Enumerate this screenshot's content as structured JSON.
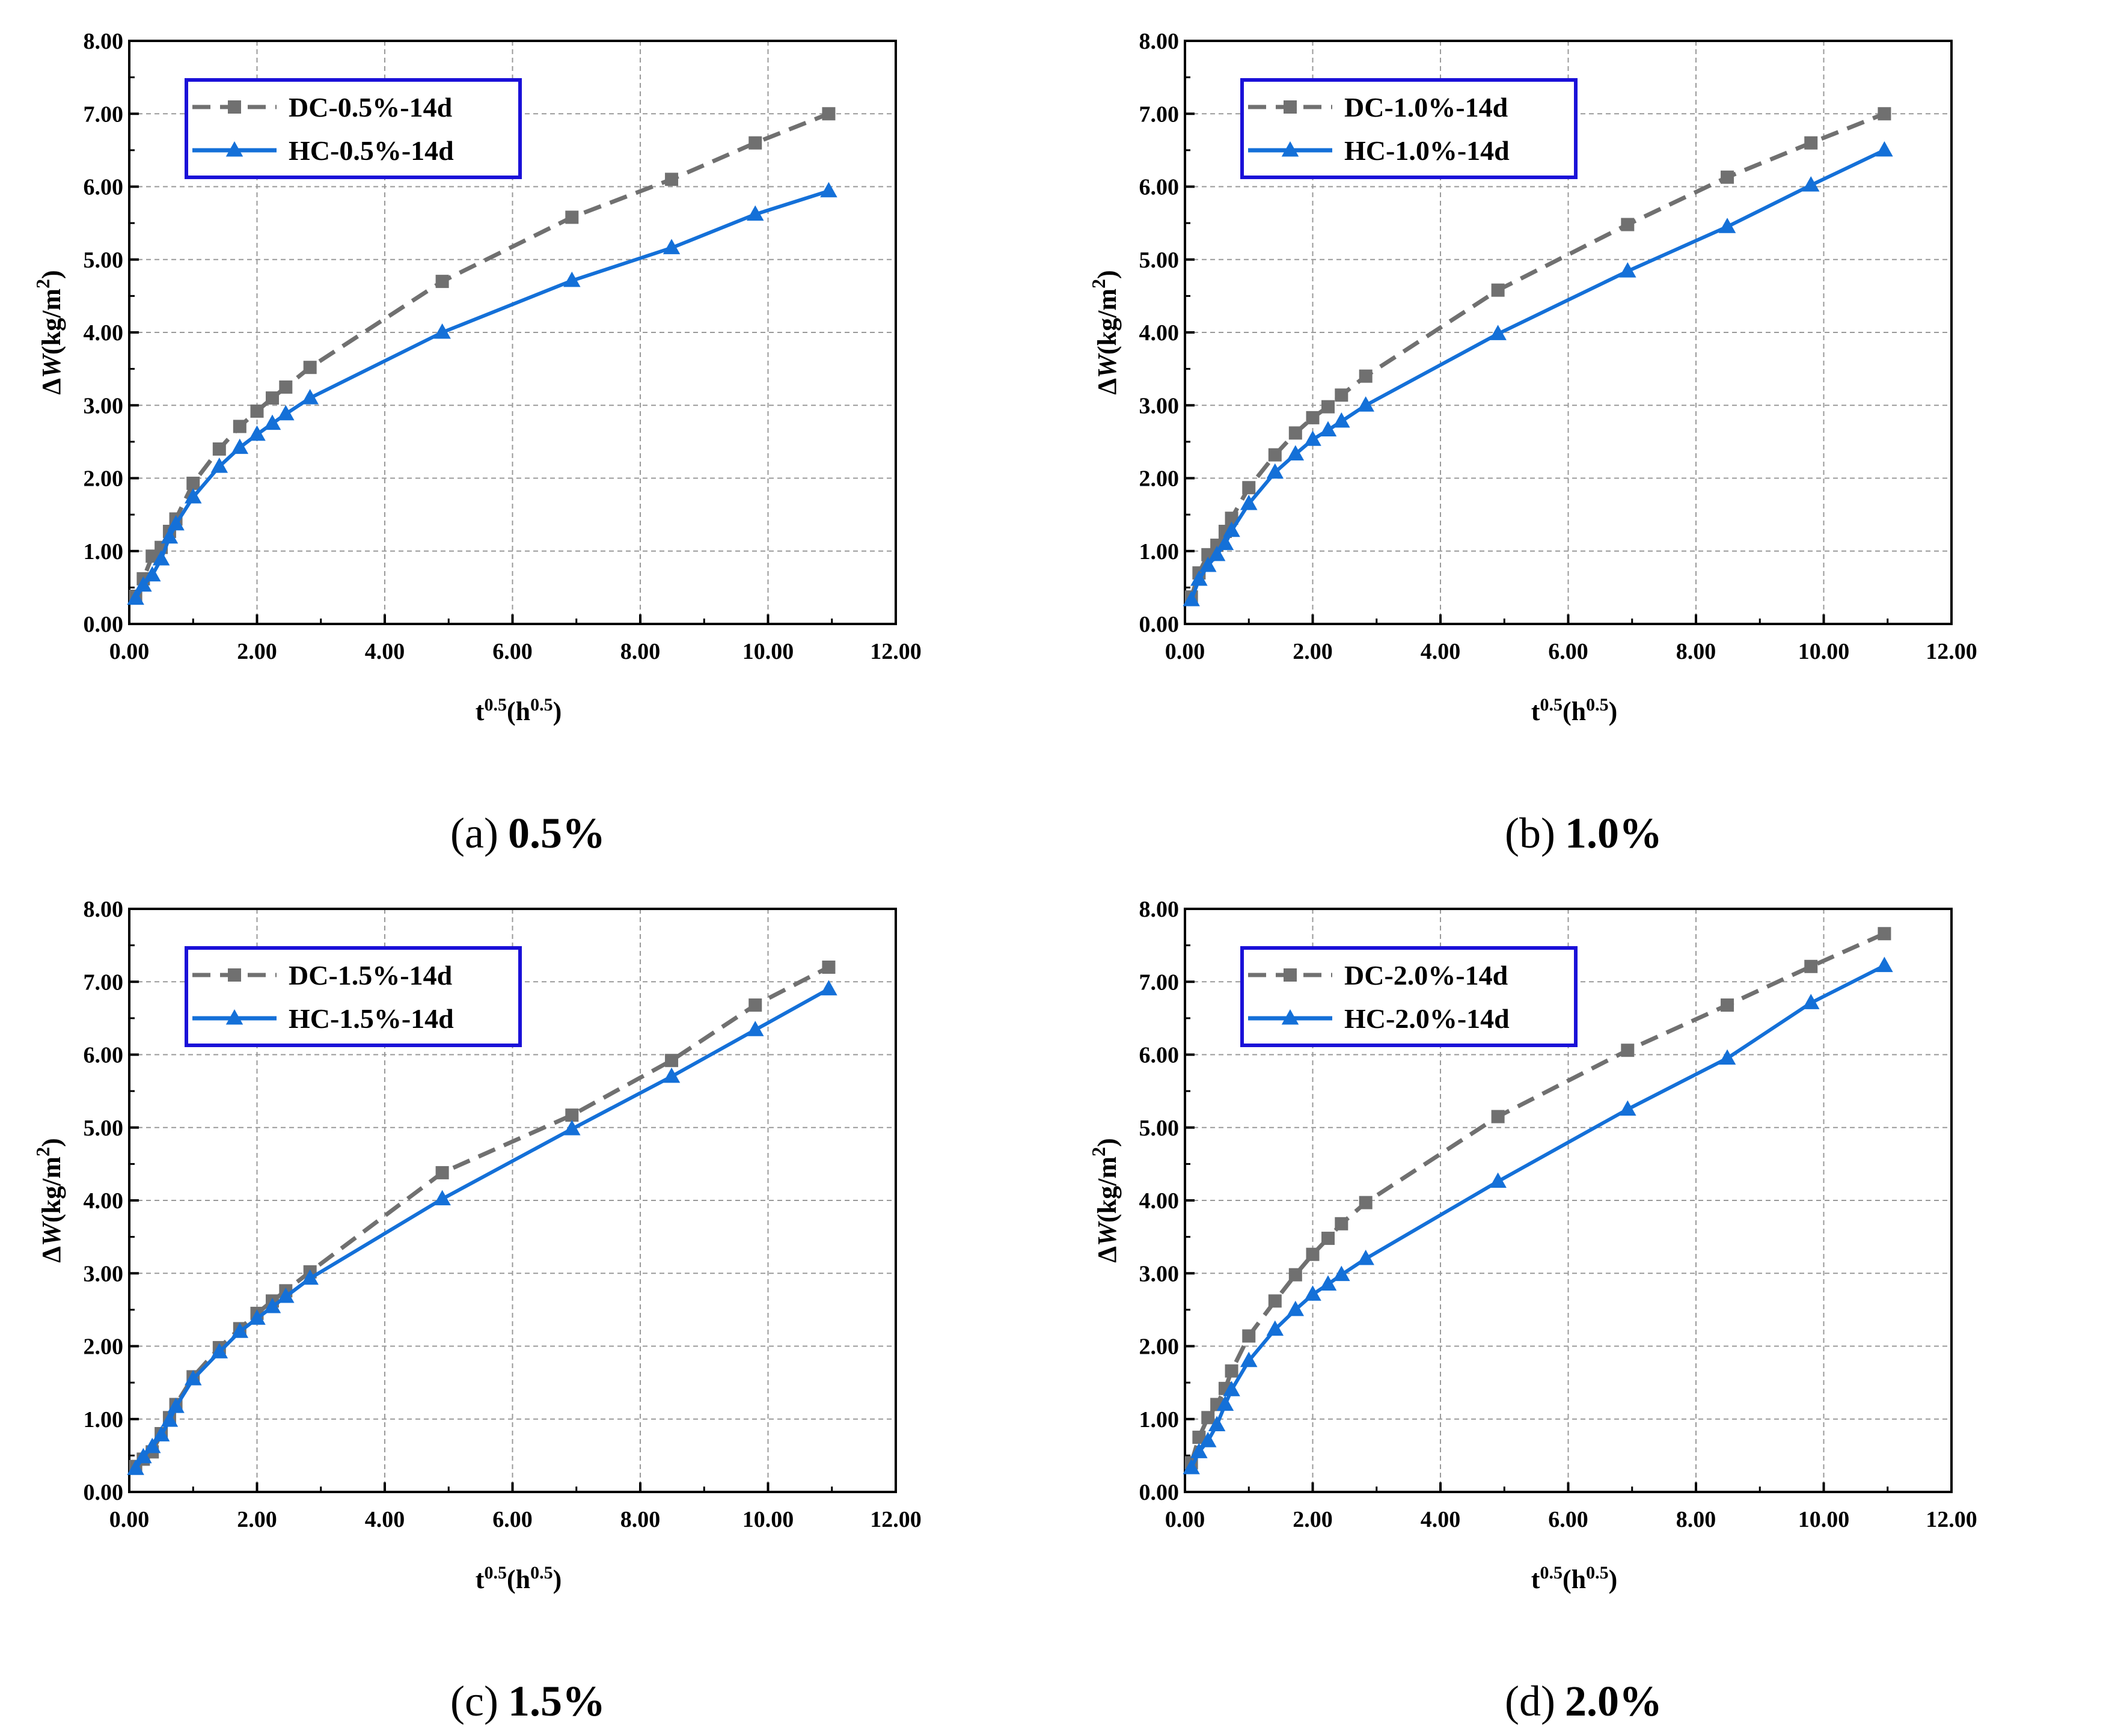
{
  "colors": {
    "dc": "#707070",
    "hc": "#1470d8",
    "legend_border": "#1a10d8",
    "grid": "#9a9a9a"
  },
  "chart_data": [
    {
      "type": "line",
      "panel_id": "a",
      "caption_label": "(a)",
      "caption_value": "0.5%",
      "xlabel": "t^0.5(h^0.5)",
      "ylabel": "ΔW(kg/m2)",
      "xlim": [
        0,
        12
      ],
      "ylim": [
        0,
        8
      ],
      "x_ticks": [
        "0.00",
        "2.00",
        "4.00",
        "6.00",
        "8.00",
        "10.00",
        "12.00"
      ],
      "y_ticks": [
        "0.00",
        "1.00",
        "2.00",
        "3.00",
        "4.00",
        "5.00",
        "6.00",
        "7.00",
        "8.00"
      ],
      "grid": true,
      "legend": "top-left",
      "series": [
        {
          "name": "DC-0.5%-14d",
          "style": "dashed",
          "marker": "square",
          "x": [
            0.1,
            0.22,
            0.36,
            0.5,
            0.63,
            0.73,
            1.0,
            1.41,
            1.73,
            2.0,
            2.24,
            2.45,
            2.83,
            4.9,
            6.93,
            8.49,
            9.8,
            10.95
          ],
          "y": [
            0.38,
            0.62,
            0.93,
            1.05,
            1.27,
            1.44,
            1.93,
            2.4,
            2.71,
            2.92,
            3.1,
            3.25,
            3.52,
            4.7,
            5.58,
            6.1,
            6.6,
            7.0
          ]
        },
        {
          "name": "HC-0.5%-14d",
          "style": "solid",
          "marker": "triangle",
          "x": [
            0.1,
            0.22,
            0.36,
            0.5,
            0.63,
            0.73,
            1.0,
            1.41,
            1.73,
            2.0,
            2.24,
            2.45,
            2.83,
            4.9,
            6.93,
            8.49,
            9.8,
            10.95
          ],
          "y": [
            0.35,
            0.53,
            0.67,
            0.89,
            1.19,
            1.37,
            1.74,
            2.16,
            2.42,
            2.6,
            2.75,
            2.88,
            3.1,
            4.0,
            4.71,
            5.16,
            5.62,
            5.94
          ]
        }
      ]
    },
    {
      "type": "line",
      "panel_id": "b",
      "caption_label": "(b)",
      "caption_value": "1.0%",
      "xlabel": "t^0.5(h^0.5)",
      "ylabel": "ΔW(kg/m2)",
      "xlim": [
        0,
        12
      ],
      "ylim": [
        0,
        8
      ],
      "x_ticks": [
        "0.00",
        "2.00",
        "4.00",
        "6.00",
        "8.00",
        "10.00",
        "12.00"
      ],
      "y_ticks": [
        "0.00",
        "1.00",
        "2.00",
        "3.00",
        "4.00",
        "5.00",
        "6.00",
        "7.00",
        "8.00"
      ],
      "grid": true,
      "legend": "top-left",
      "series": [
        {
          "name": "DC-1.0%-14d",
          "style": "dashed",
          "marker": "square",
          "x": [
            0.1,
            0.22,
            0.36,
            0.5,
            0.63,
            0.73,
            1.0,
            1.41,
            1.73,
            2.0,
            2.24,
            2.45,
            2.83,
            4.9,
            6.93,
            8.49,
            9.8,
            10.95
          ],
          "y": [
            0.37,
            0.7,
            0.95,
            1.08,
            1.27,
            1.45,
            1.87,
            2.32,
            2.62,
            2.83,
            2.98,
            3.14,
            3.4,
            4.58,
            5.48,
            6.13,
            6.6,
            7.0
          ]
        },
        {
          "name": "HC-1.0%-14d",
          "style": "solid",
          "marker": "triangle",
          "x": [
            0.1,
            0.22,
            0.36,
            0.5,
            0.63,
            0.73,
            1.0,
            1.41,
            1.73,
            2.0,
            2.24,
            2.45,
            2.83,
            4.9,
            6.93,
            8.49,
            9.8,
            10.95
          ],
          "y": [
            0.33,
            0.61,
            0.8,
            0.95,
            1.1,
            1.28,
            1.65,
            2.08,
            2.33,
            2.53,
            2.66,
            2.78,
            3.0,
            3.98,
            4.84,
            5.45,
            6.02,
            6.5
          ]
        }
      ]
    },
    {
      "type": "line",
      "panel_id": "c",
      "caption_label": "(c)",
      "caption_value": "1.5%",
      "xlabel": "t^0.5(h^0.5)",
      "ylabel": "ΔW(kg/m2)",
      "xlim": [
        0,
        12
      ],
      "ylim": [
        0,
        8
      ],
      "x_ticks": [
        "0.00",
        "2.00",
        "4.00",
        "6.00",
        "8.00",
        "10.00",
        "12.00"
      ],
      "y_ticks": [
        "0.00",
        "1.00",
        "2.00",
        "3.00",
        "4.00",
        "5.00",
        "6.00",
        "7.00",
        "8.00"
      ],
      "grid": true,
      "legend": "top-left",
      "series": [
        {
          "name": "DC-1.5%-14d",
          "style": "dashed",
          "marker": "square",
          "x": [
            0.1,
            0.22,
            0.36,
            0.5,
            0.63,
            0.73,
            1.0,
            1.41,
            1.73,
            2.0,
            2.24,
            2.45,
            2.83,
            4.9,
            6.93,
            8.49,
            9.8,
            10.95
          ],
          "y": [
            0.35,
            0.45,
            0.55,
            0.8,
            1.02,
            1.2,
            1.58,
            1.98,
            2.24,
            2.45,
            2.62,
            2.76,
            3.02,
            4.38,
            5.17,
            5.92,
            6.68,
            7.2
          ]
        },
        {
          "name": "HC-1.5%-14d",
          "style": "solid",
          "marker": "triangle",
          "x": [
            0.1,
            0.22,
            0.36,
            0.5,
            0.63,
            0.73,
            1.0,
            1.41,
            1.73,
            2.0,
            2.24,
            2.45,
            2.83,
            4.9,
            6.93,
            8.49,
            9.8,
            10.95
          ],
          "y": [
            0.32,
            0.48,
            0.62,
            0.78,
            0.98,
            1.17,
            1.55,
            1.92,
            2.2,
            2.38,
            2.54,
            2.68,
            2.93,
            4.02,
            4.98,
            5.7,
            6.34,
            6.9
          ]
        }
      ]
    },
    {
      "type": "line",
      "panel_id": "d",
      "caption_label": "(d)",
      "caption_value": "2.0%",
      "xlabel": "t^0.5(h^0.5)",
      "ylabel": "ΔW(kg/m2)",
      "xlim": [
        0,
        12
      ],
      "ylim": [
        0,
        8
      ],
      "x_ticks": [
        "0.00",
        "2.00",
        "4.00",
        "6.00",
        "8.00",
        "10.00",
        "12.00"
      ],
      "y_ticks": [
        "0.00",
        "1.00",
        "2.00",
        "3.00",
        "4.00",
        "5.00",
        "6.00",
        "7.00",
        "8.00"
      ],
      "grid": true,
      "legend": "top-left",
      "series": [
        {
          "name": "DC-2.0%-14d",
          "style": "dashed",
          "marker": "square",
          "x": [
            0.1,
            0.22,
            0.36,
            0.5,
            0.63,
            0.73,
            1.0,
            1.41,
            1.73,
            2.0,
            2.24,
            2.45,
            2.83,
            4.9,
            6.93,
            8.49,
            9.8,
            10.95
          ],
          "y": [
            0.4,
            0.75,
            1.02,
            1.2,
            1.42,
            1.66,
            2.14,
            2.62,
            2.98,
            3.26,
            3.48,
            3.68,
            3.97,
            5.15,
            6.06,
            6.68,
            7.21,
            7.66
          ]
        },
        {
          "name": "HC-2.0%-14d",
          "style": "solid",
          "marker": "triangle",
          "x": [
            0.1,
            0.22,
            0.36,
            0.5,
            0.63,
            0.73,
            1.0,
            1.41,
            1.73,
            2.0,
            2.24,
            2.45,
            2.83,
            4.9,
            6.93,
            8.49,
            9.8,
            10.95
          ],
          "y": [
            0.33,
            0.55,
            0.7,
            0.92,
            1.2,
            1.4,
            1.8,
            2.23,
            2.5,
            2.71,
            2.85,
            2.98,
            3.2,
            4.26,
            5.25,
            5.95,
            6.71,
            7.22
          ]
        }
      ]
    }
  ]
}
